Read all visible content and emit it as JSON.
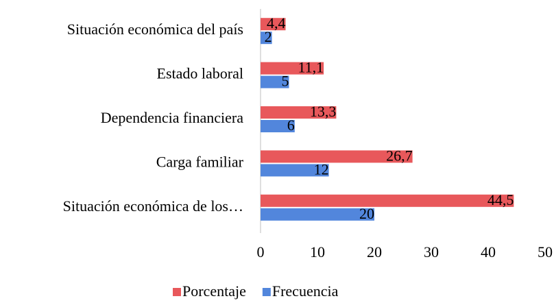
{
  "chart_data": {
    "type": "hbar",
    "categories": [
      "Situación económica del país",
      "Estado laboral",
      "Dependencia financiera",
      "Carga familiar",
      "Situación económica de los…"
    ],
    "series": [
      {
        "name": "Porcentaje",
        "color": "#e8585b",
        "values": [
          4.4,
          11.1,
          13.3,
          26.7,
          44.5
        ],
        "value_labels": [
          "4,4",
          "11,1",
          "13,3",
          "26,7",
          "44,5"
        ]
      },
      {
        "name": "Frecuencia",
        "color": "#5286dc",
        "values": [
          2,
          5,
          6,
          12,
          20
        ]
      }
    ],
    "xlim": [
      0,
      50
    ],
    "xticks": [
      0,
      10,
      20,
      30,
      40,
      50
    ],
    "legend": "bottom"
  }
}
